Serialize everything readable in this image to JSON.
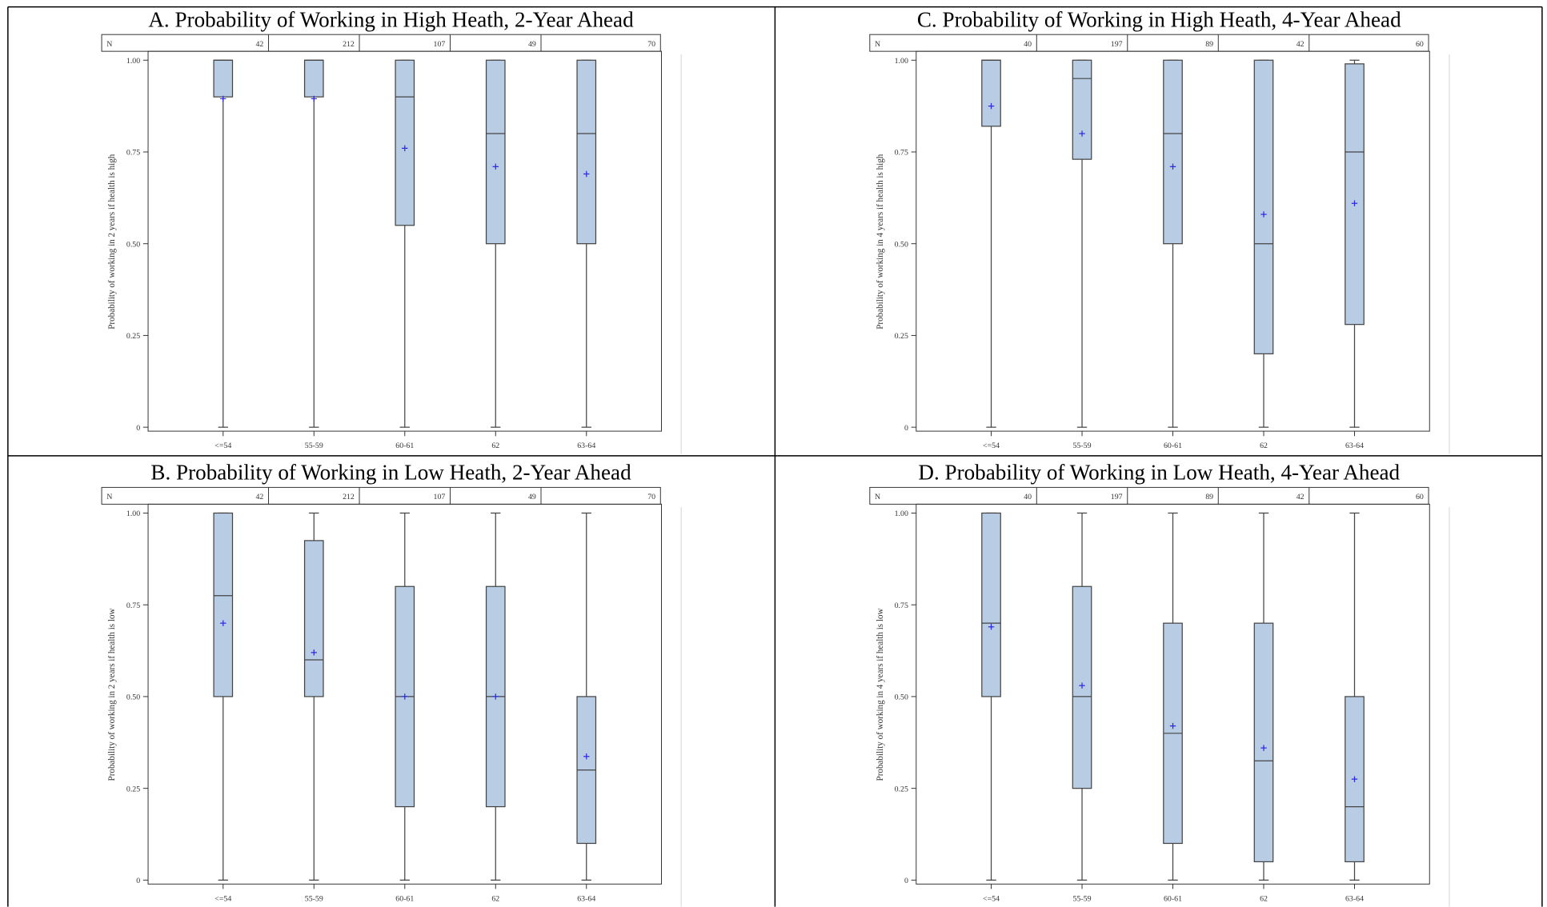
{
  "chart_data": [
    {
      "type": "box",
      "title": "A. Probability of Working in High Heath, 2-Year Ahead",
      "y_label": "Probability of working in 2 years if health is high",
      "n_label": "N",
      "categories": [
        "<=54",
        "55-59",
        "60-61",
        "62",
        "63-64"
      ],
      "n": [
        42,
        212,
        107,
        49,
        70
      ],
      "min": [
        0,
        0,
        0,
        0,
        0
      ],
      "q1": [
        0.9,
        0.9,
        0.55,
        0.5,
        0.5
      ],
      "median": [
        1,
        1,
        0.9,
        0.8,
        0.8
      ],
      "q3": [
        1,
        1,
        1,
        1,
        1
      ],
      "max": [
        1,
        1,
        1,
        1,
        1
      ],
      "mean": [
        0.895,
        0.895,
        0.76,
        0.71,
        0.69
      ],
      "color": "#b8cce4",
      "mean_color": "#2a2ae0",
      "ylim": [
        0,
        1
      ],
      "yticks": [
        0,
        {
          "value": 0.25,
          "label": "0.25"
        },
        {
          "value": 0.5,
          "label": "0.50"
        },
        {
          "value": 0.75,
          "label": "0.75"
        },
        {
          "value": 1,
          "label": "1.00"
        }
      ]
    },
    {
      "type": "box",
      "title": "C. Probability of Working in High Heath, 4-Year Ahead",
      "y_label": "Probability of working in 4 years if health is high",
      "n_label": "N",
      "categories": [
        "<=54",
        "55-59",
        "60-61",
        "62",
        "63-64"
      ],
      "n": [
        40,
        197,
        89,
        42,
        60
      ],
      "min": [
        0,
        0,
        0,
        0,
        0
      ],
      "q1": [
        0.82,
        0.73,
        0.5,
        0.2,
        0.28
      ],
      "median": [
        1,
        0.95,
        0.8,
        0.5,
        0.75
      ],
      "q3": [
        1,
        1,
        1,
        1,
        0.99
      ],
      "max": [
        1,
        1,
        1,
        1,
        1
      ],
      "mean": [
        0.875,
        0.8,
        0.71,
        0.58,
        0.61
      ],
      "color": "#b8cce4",
      "mean_color": "#2a2ae0",
      "ylim": [
        0,
        1
      ],
      "yticks": [
        0,
        {
          "value": 0.25,
          "label": "0.25"
        },
        {
          "value": 0.5,
          "label": "0.50"
        },
        {
          "value": 0.75,
          "label": "0.75"
        },
        {
          "value": 1,
          "label": "1.00"
        }
      ]
    },
    {
      "type": "box",
      "title": "B. Probability of Working in Low Heath, 2-Year Ahead",
      "y_label": "Probability of working in 2 years if health is low",
      "n_label": "N",
      "categories": [
        "<=54",
        "55-59",
        "60-61",
        "62",
        "63-64"
      ],
      "n": [
        42,
        212,
        107,
        49,
        70
      ],
      "min": [
        0,
        0,
        0,
        0,
        0
      ],
      "q1": [
        0.5,
        0.5,
        0.2,
        0.2,
        0.1
      ],
      "median": [
        0.775,
        0.6,
        0.5,
        0.5,
        0.3
      ],
      "q3": [
        1,
        0.925,
        0.8,
        0.8,
        0.5
      ],
      "max": [
        1,
        1,
        1,
        1,
        1
      ],
      "mean": [
        0.7,
        0.62,
        0.5,
        0.5,
        0.337
      ],
      "color": "#b8cce4",
      "mean_color": "#2a2ae0",
      "ylim": [
        0,
        1
      ],
      "yticks": [
        0,
        {
          "value": 0.25,
          "label": "0.25"
        },
        {
          "value": 0.5,
          "label": "0.50"
        },
        {
          "value": 0.75,
          "label": "0.75"
        },
        {
          "value": 1,
          "label": "1.00"
        }
      ]
    },
    {
      "type": "box",
      "title": "D. Probability of Working in Low Heath, 4-Year Ahead",
      "y_label": "Probability of working in 4 years if health is low",
      "n_label": "N",
      "categories": [
        "<=54",
        "55-59",
        "60-61",
        "62",
        "63-64"
      ],
      "n": [
        40,
        197,
        89,
        42,
        60
      ],
      "min": [
        0,
        0,
        0,
        0,
        0
      ],
      "q1": [
        0.5,
        0.25,
        0.1,
        0.05,
        0.05
      ],
      "median": [
        0.7,
        0.5,
        0.4,
        0.325,
        0.2
      ],
      "q3": [
        1,
        0.8,
        0.7,
        0.7,
        0.5
      ],
      "max": [
        1,
        1,
        1,
        1,
        1
      ],
      "mean": [
        0.69,
        0.53,
        0.42,
        0.36,
        0.275
      ],
      "color": "#b8cce4",
      "mean_color": "#2a2ae0",
      "ylim": [
        0,
        1
      ],
      "yticks": [
        0,
        {
          "value": 0.25,
          "label": "0.25"
        },
        {
          "value": 0.5,
          "label": "0.50"
        },
        {
          "value": 0.75,
          "label": "0.75"
        },
        {
          "value": 1,
          "label": "1.00"
        }
      ]
    }
  ]
}
